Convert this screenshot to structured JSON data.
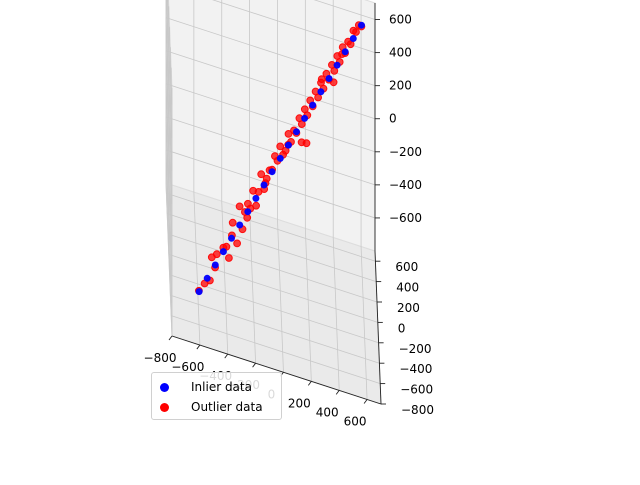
{
  "chart_data": {
    "type": "scatter",
    "title": "",
    "xlabel": "",
    "ylabel": "",
    "zlabel": "",
    "grid": true,
    "legend_placement": "lower-left",
    "xlim": [
      -800,
      700
    ],
    "ylim": [
      -800,
      700
    ],
    "zlim": [
      -800,
      700
    ],
    "x_ticks": [
      -800,
      -600,
      -400,
      -200,
      0,
      200,
      400,
      600
    ],
    "x_tick_labels": [
      "−800",
      "−600",
      "−400",
      "−200",
      "0",
      "200",
      "400",
      "600"
    ],
    "y_ticks": [
      -800,
      -600,
      -400,
      -200,
      0,
      200,
      400,
      600
    ],
    "y_tick_labels": [
      "−800",
      "−600",
      "−400",
      "−200",
      "0",
      "200",
      "400",
      "600"
    ],
    "z_ticks": [
      -600,
      -400,
      -200,
      0,
      200,
      400,
      600
    ],
    "z_tick_labels": [
      "−600",
      "−400",
      "−200",
      "0",
      "200",
      "400",
      "600"
    ],
    "series": [
      {
        "name": "Inlier data",
        "color": "#0000ff",
        "points": [
          [
            -600,
            -600,
            -600
          ],
          [
            -540,
            -540,
            -540
          ],
          [
            -480,
            -480,
            -480
          ],
          [
            -420,
            -420,
            -420
          ],
          [
            -360,
            -360,
            -360
          ],
          [
            -300,
            -300,
            -300
          ],
          [
            -240,
            -240,
            -240
          ],
          [
            -180,
            -180,
            -180
          ],
          [
            -120,
            -120,
            -120
          ],
          [
            -60,
            -60,
            -60
          ],
          [
            0,
            0,
            0
          ],
          [
            60,
            60,
            60
          ],
          [
            120,
            120,
            120
          ],
          [
            180,
            180,
            180
          ],
          [
            240,
            240,
            240
          ],
          [
            300,
            300,
            300
          ],
          [
            360,
            360,
            360
          ],
          [
            420,
            420,
            420
          ],
          [
            480,
            480,
            480
          ],
          [
            540,
            540,
            540
          ],
          [
            600,
            600,
            600
          ]
        ]
      },
      {
        "name": "Outlier data",
        "color": "#ff0000",
        "points": [
          [
            -600,
            -560,
            -620
          ],
          [
            -560,
            -600,
            -540
          ],
          [
            -520,
            -520,
            -560
          ],
          [
            -480,
            -440,
            -520
          ],
          [
            -470,
            -500,
            -400
          ],
          [
            -420,
            -380,
            -420
          ],
          [
            -400,
            -460,
            -360
          ],
          [
            -380,
            -400,
            -460
          ],
          [
            -350,
            -300,
            -300
          ],
          [
            -320,
            -360,
            -380
          ],
          [
            -300,
            -280,
            -200
          ],
          [
            -280,
            -300,
            -320
          ],
          [
            -260,
            -220,
            -260
          ],
          [
            -240,
            -260,
            -180
          ],
          [
            -220,
            -200,
            -240
          ],
          [
            -200,
            -180,
            -140
          ],
          [
            -180,
            -220,
            -200
          ],
          [
            -160,
            -140,
            -160
          ],
          [
            -140,
            -120,
            -60
          ],
          [
            -120,
            -160,
            -120
          ],
          [
            -100,
            -80,
            -100
          ],
          [
            -80,
            -120,
            -20
          ],
          [
            -60,
            -40,
            -60
          ],
          [
            -40,
            -60,
            40
          ],
          [
            -20,
            0,
            -20
          ],
          [
            0,
            20,
            60
          ],
          [
            20,
            -20,
            40
          ],
          [
            40,
            60,
            20
          ],
          [
            60,
            40,
            140
          ],
          [
            80,
            100,
            60
          ],
          [
            100,
            60,
            160
          ],
          [
            120,
            140,
            100
          ],
          [
            140,
            100,
            220
          ],
          [
            160,
            180,
            140
          ],
          [
            180,
            140,
            260
          ],
          [
            200,
            220,
            180
          ],
          [
            220,
            180,
            300
          ],
          [
            240,
            260,
            220
          ],
          [
            260,
            220,
            340
          ],
          [
            280,
            300,
            260
          ],
          [
            300,
            260,
            380
          ],
          [
            320,
            340,
            300
          ],
          [
            340,
            300,
            420
          ],
          [
            360,
            380,
            340
          ],
          [
            380,
            340,
            460
          ],
          [
            400,
            420,
            380
          ],
          [
            420,
            380,
            500
          ],
          [
            440,
            460,
            420
          ],
          [
            460,
            420,
            540
          ],
          [
            480,
            500,
            460
          ],
          [
            500,
            460,
            560
          ],
          [
            520,
            540,
            500
          ],
          [
            540,
            520,
            600
          ],
          [
            560,
            580,
            560
          ],
          [
            580,
            560,
            620
          ],
          [
            600,
            620,
            580
          ],
          [
            -500,
            -300,
            -550
          ],
          [
            -250,
            -450,
            -150
          ],
          [
            150,
            -100,
            200
          ],
          [
            200,
            400,
            -100
          ],
          [
            -100,
            200,
            -300
          ],
          [
            300,
            100,
            500
          ],
          [
            400,
            600,
            200
          ],
          [
            -350,
            -100,
            -500
          ],
          [
            50,
            -250,
            250
          ],
          [
            450,
            250,
            600
          ]
        ]
      }
    ]
  }
}
